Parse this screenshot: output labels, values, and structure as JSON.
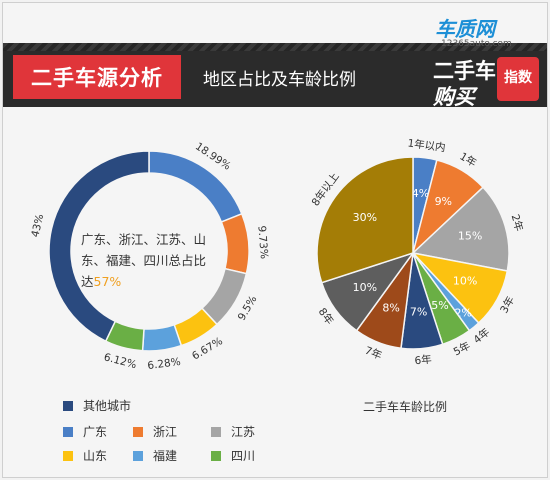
{
  "header": {
    "title": "二手车源分析",
    "subtitle": "地区占比及车龄比例",
    "brand_line1": "车质网",
    "brand_line2": "12365auto.com",
    "brand_line3": "二手车",
    "brand_line4": "购买",
    "brand_badge": "指数"
  },
  "donut": {
    "center_text_pre": "广东、浙江、江苏、山东、福建、四川总占比达",
    "center_text_value": "57%"
  },
  "pie": {
    "title": "二手车车龄比例"
  },
  "colors": {
    "other": "#2a4a7f",
    "guangdong": "#4a7fc6",
    "zhejiang": "#ee7b30",
    "jiangsu": "#a5a5a5",
    "shandong": "#fcc210",
    "fujian": "#5ca1dc",
    "sichuan": "#6aaf45",
    "y7": "#9e4a1a",
    "y8": "#5e5e5e",
    "y8plus": "#a47d06"
  },
  "chart_data": [
    {
      "type": "pie",
      "variant": "donut",
      "categories": [
        "其他城市",
        "广东",
        "浙江",
        "江苏",
        "山东",
        "福建",
        "四川"
      ],
      "values": [
        43,
        18.99,
        9.73,
        9.5,
        6.67,
        6.28,
        6.12
      ],
      "data_labels": [
        "43%",
        "18.99%",
        "9.73%",
        "9.5%",
        "6.67%",
        "6.28%",
        "6.12%"
      ],
      "colors": [
        "#2a4a7f",
        "#4a7fc6",
        "#ee7b30",
        "#a5a5a5",
        "#fcc210",
        "#5ca1dc",
        "#6aaf45"
      ],
      "legend": "bottom"
    },
    {
      "type": "pie",
      "title": "二手车车龄比例",
      "categories": [
        "1年以内",
        "1年",
        "2年",
        "3年",
        "4年",
        "5年",
        "6年",
        "7年",
        "8年",
        "8年以上"
      ],
      "values": [
        4,
        9,
        15,
        10,
        2,
        5,
        7,
        8,
        10,
        30
      ],
      "data_labels": [
        "4%",
        "9%",
        "15%",
        "10%",
        "2%",
        "5%",
        "7%",
        "8%",
        "10%",
        "30%"
      ],
      "colors": [
        "#4a7fc6",
        "#ee7b30",
        "#a5a5a5",
        "#fcc210",
        "#5ca1dc",
        "#6aaf45",
        "#2a4a7f",
        "#9e4a1a",
        "#5e5e5e",
        "#a47d06"
      ]
    }
  ]
}
